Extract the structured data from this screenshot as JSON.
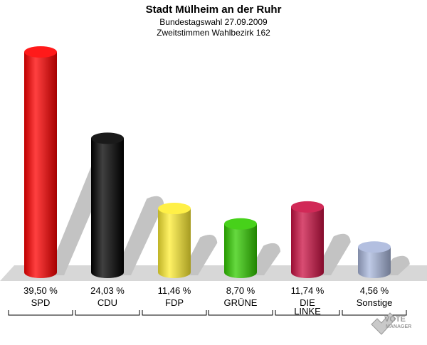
{
  "chart_data": {
    "type": "bar",
    "title": "Stadt Mülheim an der Ruhr",
    "subtitle": "Bundestagswahl 27.09.2009",
    "subtitle2": "Zweitstimmen Wahlbezirk 162",
    "categories": [
      "SPD",
      "CDU",
      "FDP",
      "GRÜNE",
      "DIE LINKE",
      "Sonstige"
    ],
    "category_lines": [
      [
        "SPD"
      ],
      [
        "CDU"
      ],
      [
        "FDP"
      ],
      [
        "GRÜNE"
      ],
      [
        "DIE",
        "LINKE"
      ],
      [
        "Sonstige"
      ]
    ],
    "values": [
      39.5,
      24.03,
      11.46,
      8.7,
      11.74,
      4.56
    ],
    "value_labels": [
      "39,50 %",
      "24,03 %",
      "11,46 %",
      "8,70 %",
      "11,74 %",
      "4,56 %"
    ],
    "colors": [
      "#ff0000",
      "#000000",
      "#ffee33",
      "#33cc00",
      "#cc1144",
      "#aab8dd"
    ],
    "ylim": [
      0,
      39.5
    ],
    "grid": false,
    "legend": "none"
  },
  "logo": {
    "text": "VOTE",
    "subtext": "MANAGER",
    "icon": "checkmark-icon"
  }
}
